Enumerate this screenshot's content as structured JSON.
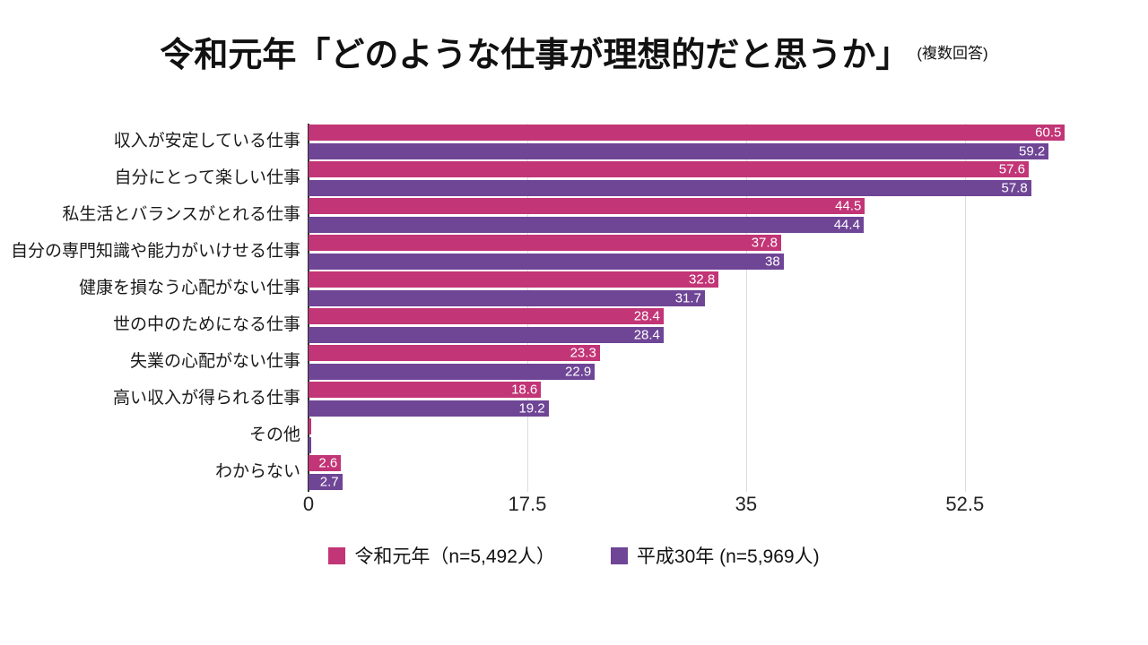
{
  "title": {
    "main": "令和元年「どのような仕事が理想的だと思うか」",
    "note": "(複数回答)"
  },
  "chart_data": {
    "type": "bar",
    "orientation": "horizontal",
    "title": "令和元年「どのような仕事が理想的だと思うか」(複数回答)",
    "categories": [
      "収入が安定している仕事",
      "自分にとって楽しい仕事",
      "私生活とバランスがとれる仕事",
      "自分の専門知識や能力がいけせる仕事",
      "健康を損なう心配がない仕事",
      "世の中のためになる仕事",
      "失業の心配がない仕事",
      "高い収入が得られる仕事",
      "その他",
      "わからない"
    ],
    "series": [
      {
        "name": "令和元年（n=5,492人）",
        "color": "#c23576",
        "values": [
          60.5,
          57.6,
          44.5,
          37.8,
          32.8,
          28.4,
          23.3,
          18.6,
          0.2,
          2.6
        ]
      },
      {
        "name": "平成30年 (n=5,969人)",
        "color": "#6f4596",
        "values": [
          59.2,
          57.8,
          44.4,
          38,
          31.7,
          28.4,
          22.9,
          19.2,
          0.2,
          2.7
        ]
      }
    ],
    "xticks": [
      0,
      17.5,
      35,
      52.5
    ],
    "xlim": [
      0,
      61
    ],
    "grid": true,
    "legend_position": "bottom"
  }
}
